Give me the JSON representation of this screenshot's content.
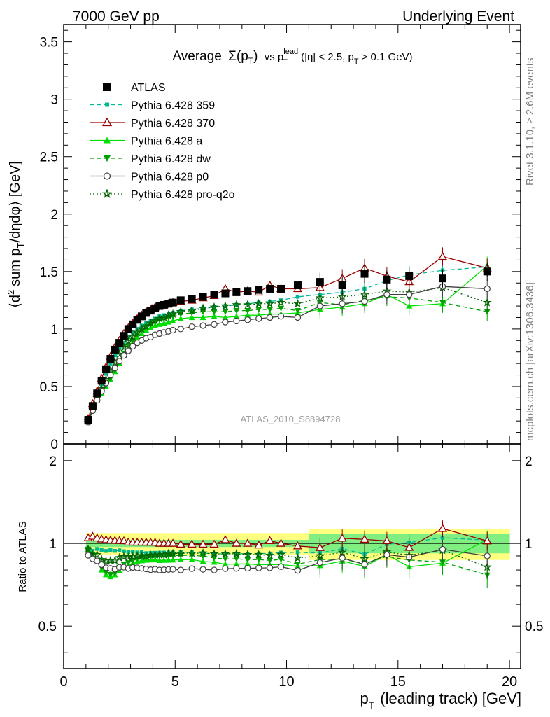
{
  "header": {
    "left": "7000 GeV pp",
    "right": "Underlying Event"
  },
  "side": {
    "rivet": "Rivet 3.1.10, ≥ 2.6M events",
    "mcplots": "mcplots.cern.ch [arXiv:1306.3436]"
  },
  "analysis_id": "ATLAS_2010_S8894728",
  "chart_data": {
    "type": "scatter",
    "title": "Average Σ(pT) vs pT lead (|η| < 2.5, pT > 0.1 GeV)",
    "title_parts": {
      "average": "Average",
      "sigma": "Σ(p",
      "sigma_sub": "T",
      "sigma_close": ")",
      "vs": "vs p",
      "lead_sup": "lead",
      "lead_sub": "T",
      "cuts_a": "(|η| < 2.5, p",
      "cuts_sub": "T",
      "cuts_b": "> 0.1 GeV)"
    },
    "xlabel": "p_T (leading track) [GeV]",
    "xlabel_parts": {
      "main": "p",
      "sub": "T",
      "rest": "(leading track) [GeV]"
    },
    "ylabel": "⟨d² sum p_T/dηdφ⟩ [GeV]",
    "ylabel_parts": {
      "open": "⟨d",
      "sup": "2",
      "mid": "sum p",
      "sub": "T",
      "rest": "/dηdφ⟩ [GeV]"
    },
    "ratio_ylabel": "Ratio to ATLAS",
    "xlim": [
      0,
      20.5
    ],
    "ylim": [
      0,
      3.65
    ],
    "ratio_ylim": [
      0.35,
      2.3
    ],
    "x_ticks": [
      "0",
      "5",
      "10",
      "15",
      "20"
    ],
    "y_ticks": [
      "0",
      "0.5",
      "1",
      "1.5",
      "2",
      "2.5",
      "3",
      "3.5"
    ],
    "ratio_ticks": [
      "0.5",
      "1",
      "2"
    ],
    "legend_position": "top-left",
    "x": [
      1.1,
      1.3,
      1.5,
      1.7,
      1.9,
      2.1,
      2.3,
      2.5,
      2.7,
      2.9,
      3.1,
      3.3,
      3.5,
      3.7,
      3.9,
      4.1,
      4.3,
      4.5,
      4.7,
      4.9,
      5.25,
      5.75,
      6.25,
      6.75,
      7.25,
      7.75,
      8.25,
      8.75,
      9.25,
      9.75,
      10.5,
      11.5,
      12.5,
      13.5,
      14.5,
      15.5,
      17.0,
      19.0
    ],
    "series": [
      {
        "name": "ATLAS",
        "style": "data",
        "color": "#000000",
        "marker": "square-filled",
        "line": "none",
        "values": [
          0.21,
          0.33,
          0.44,
          0.55,
          0.65,
          0.74,
          0.82,
          0.88,
          0.94,
          1.0,
          1.04,
          1.08,
          1.11,
          1.14,
          1.16,
          1.18,
          1.2,
          1.21,
          1.22,
          1.23,
          1.25,
          1.26,
          1.28,
          1.3,
          1.31,
          1.32,
          1.33,
          1.34,
          1.35,
          1.35,
          1.38,
          1.41,
          1.38,
          1.48,
          1.43,
          1.46,
          1.44,
          1.5
        ]
      },
      {
        "name": "Pythia 6.428 359",
        "color": "#00b894",
        "marker": "square-small",
        "line": "dashed",
        "values": [
          0.2,
          0.31,
          0.42,
          0.52,
          0.61,
          0.7,
          0.77,
          0.83,
          0.88,
          0.93,
          0.97,
          1.0,
          1.03,
          1.05,
          1.07,
          1.09,
          1.11,
          1.12,
          1.13,
          1.14,
          1.16,
          1.17,
          1.18,
          1.19,
          1.2,
          1.21,
          1.22,
          1.23,
          1.24,
          1.25,
          1.28,
          1.3,
          1.32,
          1.35,
          1.42,
          1.47,
          1.51,
          1.54
        ]
      },
      {
        "name": "Pythia 6.428 370",
        "color": "#9b0000",
        "marker": "triangle-open",
        "line": "solid",
        "values": [
          0.22,
          0.35,
          0.46,
          0.57,
          0.67,
          0.76,
          0.84,
          0.9,
          0.96,
          1.01,
          1.05,
          1.09,
          1.12,
          1.15,
          1.17,
          1.19,
          1.2,
          1.21,
          1.22,
          1.23,
          1.24,
          1.25,
          1.27,
          1.29,
          1.35,
          1.32,
          1.33,
          1.32,
          1.38,
          1.35,
          1.35,
          1.36,
          1.44,
          1.53,
          1.46,
          1.41,
          1.63,
          1.53
        ]
      },
      {
        "name": "Pythia 6.428 a",
        "color": "#00e000",
        "marker": "triangle-filled",
        "line": "solid",
        "values": [
          0.2,
          0.3,
          0.38,
          0.44,
          0.5,
          0.56,
          0.63,
          0.7,
          0.77,
          0.83,
          0.88,
          0.93,
          0.96,
          0.99,
          1.01,
          1.03,
          1.04,
          1.05,
          1.06,
          1.07,
          1.09,
          1.1,
          1.1,
          1.11,
          1.1,
          1.11,
          1.12,
          1.12,
          1.13,
          1.13,
          1.14,
          1.17,
          1.19,
          1.22,
          1.3,
          1.2,
          1.22,
          1.55
        ]
      },
      {
        "name": "Pythia 6.428 dw",
        "color": "#00a000",
        "marker": "triangle-down-filled",
        "line": "dashed",
        "values": [
          0.2,
          0.3,
          0.38,
          0.45,
          0.51,
          0.57,
          0.64,
          0.72,
          0.79,
          0.85,
          0.9,
          0.95,
          0.99,
          1.02,
          1.04,
          1.06,
          1.08,
          1.09,
          1.1,
          1.11,
          1.13,
          1.14,
          1.15,
          1.15,
          1.15,
          1.16,
          1.16,
          1.17,
          1.17,
          1.18,
          1.16,
          1.23,
          1.21,
          1.25,
          1.28,
          1.27,
          1.23,
          1.15
        ]
      },
      {
        "name": "Pythia 6.428 p0",
        "color": "#404040",
        "marker": "circle-open",
        "line": "solid",
        "values": [
          0.19,
          0.29,
          0.38,
          0.46,
          0.53,
          0.6,
          0.66,
          0.72,
          0.77,
          0.81,
          0.85,
          0.88,
          0.9,
          0.92,
          0.93,
          0.95,
          0.96,
          0.97,
          0.98,
          0.99,
          1.0,
          1.02,
          1.03,
          1.04,
          1.06,
          1.07,
          1.08,
          1.09,
          1.1,
          1.11,
          1.1,
          1.2,
          1.22,
          1.24,
          1.3,
          1.3,
          1.37,
          1.35
        ]
      },
      {
        "name": "Pythia 6.428 pro-q2o",
        "color": "#006400",
        "marker": "star",
        "line": "dotted",
        "values": [
          0.2,
          0.3,
          0.4,
          0.48,
          0.56,
          0.64,
          0.71,
          0.78,
          0.84,
          0.89,
          0.93,
          0.97,
          1.0,
          1.02,
          1.05,
          1.07,
          1.09,
          1.1,
          1.12,
          1.13,
          1.15,
          1.16,
          1.18,
          1.19,
          1.2,
          1.21,
          1.21,
          1.22,
          1.22,
          1.23,
          1.22,
          1.27,
          1.28,
          1.3,
          1.33,
          1.32,
          1.36,
          1.23
        ]
      }
    ]
  }
}
